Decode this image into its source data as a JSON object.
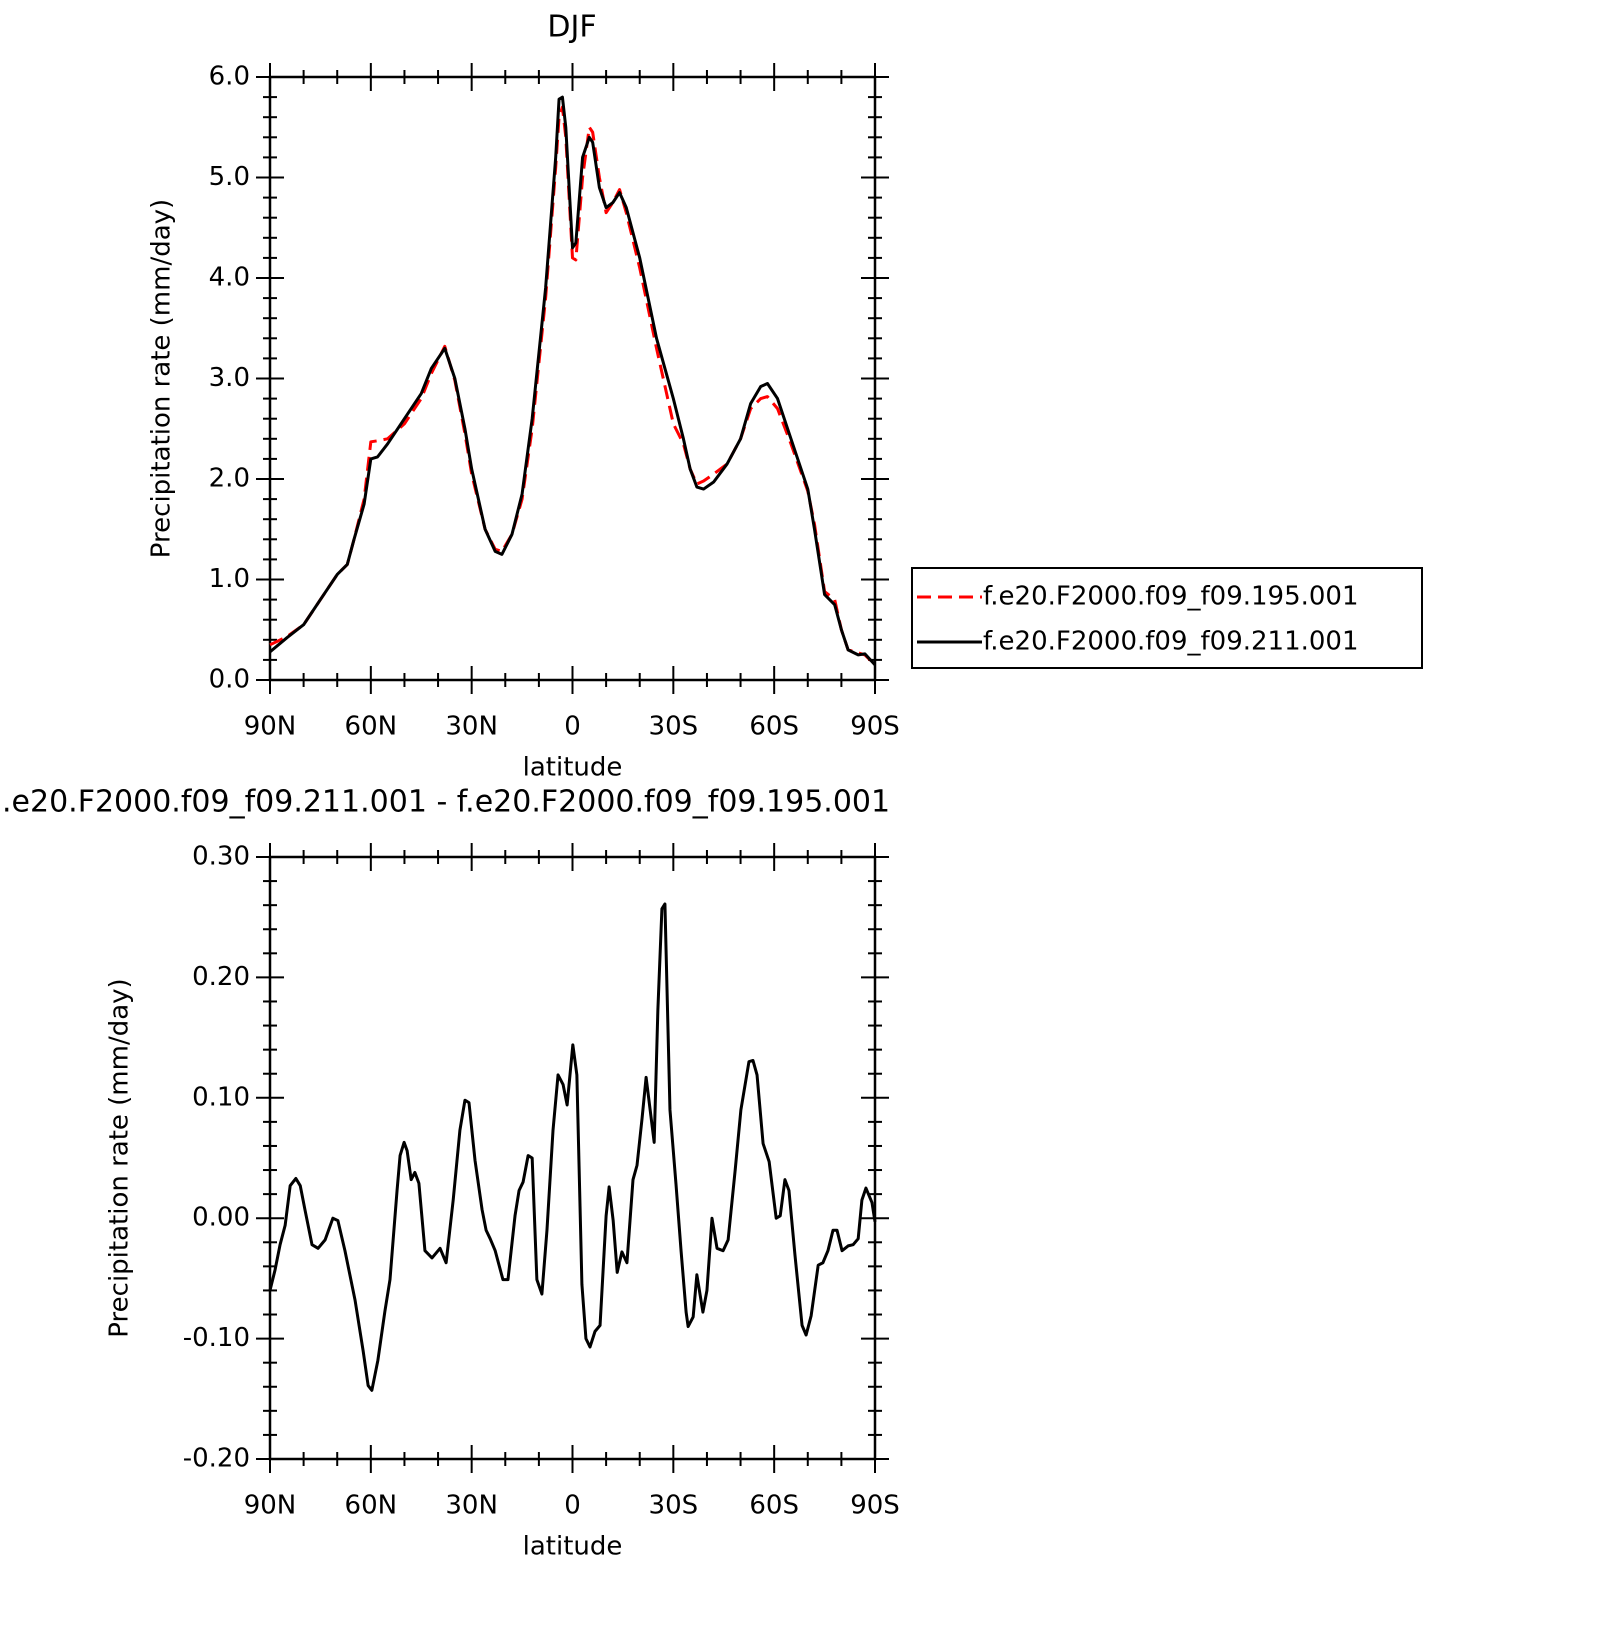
{
  "chart_data": [
    {
      "type": "line",
      "title": "DJF",
      "xlabel": "latitude",
      "ylabel": "Precipitation rate (mm/day)",
      "x": [
        90,
        85,
        80,
        75,
        70,
        67,
        65,
        62,
        60,
        58,
        55,
        50,
        45,
        42,
        38,
        35,
        32,
        30,
        26,
        23,
        21,
        18,
        15,
        12,
        8,
        5,
        4,
        3,
        2,
        0,
        -1,
        -3,
        -5,
        -6,
        -8,
        -10,
        -12,
        -14,
        -16,
        -20,
        -25,
        -30,
        -33,
        -35,
        -37,
        -39,
        -42,
        -46,
        -50,
        -53,
        -56,
        -58,
        -61,
        -65,
        -70,
        -72,
        -75,
        -78,
        -80,
        -82,
        -85,
        -87,
        -90
      ],
      "series": [
        {
          "name": "f.e20.F2000.f09_f09.195.001",
          "color": "#ff0000",
          "dashed": true,
          "values": [
            0.35,
            0.43,
            0.55,
            0.8,
            1.05,
            1.15,
            1.4,
            1.8,
            2.37,
            2.38,
            2.4,
            2.55,
            2.8,
            3.05,
            3.32,
            2.98,
            2.45,
            2.05,
            1.5,
            1.3,
            1.28,
            1.45,
            1.8,
            2.5,
            3.8,
            5.1,
            5.6,
            5.7,
            5.4,
            4.2,
            4.18,
            5.0,
            5.5,
            5.45,
            5.0,
            4.65,
            4.75,
            4.88,
            4.65,
            4.1,
            3.3,
            2.55,
            2.35,
            2.1,
            1.95,
            1.98,
            2.05,
            2.15,
            2.4,
            2.7,
            2.8,
            2.82,
            2.7,
            2.35,
            1.88,
            1.55,
            0.88,
            0.8,
            0.5,
            0.3,
            0.27,
            0.25,
            0.15
          ]
        },
        {
          "name": "f.e20.F2000.f09_f09.211.001",
          "color": "#000000",
          "dashed": false,
          "values": [
            0.28,
            0.42,
            0.55,
            0.8,
            1.05,
            1.15,
            1.4,
            1.75,
            2.2,
            2.22,
            2.35,
            2.6,
            2.85,
            3.1,
            3.3,
            3.0,
            2.5,
            2.1,
            1.5,
            1.28,
            1.25,
            1.45,
            1.85,
            2.6,
            3.9,
            5.2,
            5.78,
            5.8,
            5.5,
            4.3,
            4.35,
            5.2,
            5.4,
            5.35,
            4.9,
            4.7,
            4.75,
            4.85,
            4.7,
            4.2,
            3.4,
            2.8,
            2.4,
            2.1,
            1.92,
            1.9,
            1.97,
            2.15,
            2.4,
            2.75,
            2.92,
            2.95,
            2.8,
            2.4,
            1.9,
            1.5,
            0.85,
            0.75,
            0.5,
            0.3,
            0.25,
            0.26,
            0.15
          ]
        }
      ],
      "xlim": [
        90,
        -90
      ],
      "xticks": [
        {
          "value": 90,
          "label": "90N"
        },
        {
          "value": 60,
          "label": "60N"
        },
        {
          "value": 30,
          "label": "30N"
        },
        0,
        {
          "value": -30,
          "label": "30S"
        },
        {
          "value": -60,
          "label": "60S"
        },
        {
          "value": -90,
          "label": "90S"
        }
      ],
      "ylim": [
        0,
        6
      ],
      "yticks": [
        {
          "value": 0,
          "label": "0.0"
        },
        {
          "value": 1,
          "label": "1.0"
        },
        {
          "value": 2,
          "label": "2.0"
        },
        {
          "value": 3,
          "label": "3.0"
        },
        {
          "value": 4,
          "label": "4.0"
        },
        {
          "value": 5,
          "label": "5.0"
        },
        {
          "value": 6,
          "label": "6.0"
        }
      ],
      "legend": "right"
    },
    {
      "type": "line",
      "title": ".e20.F2000.f09_f09.211.001 - f.e20.F2000.f09_f09.195.001",
      "xlabel": "latitude",
      "ylabel": "Precipitation rate (mm/day)",
      "x": [
        90,
        88.5,
        87,
        85.5,
        84,
        82.3,
        81,
        79.6,
        77.5,
        75.7,
        73.6,
        71.3,
        69.8,
        67.7,
        64.7,
        62.3,
        60.8,
        59.7,
        57.9,
        55.8,
        54.3,
        52.2,
        51.3,
        50.1,
        49.2,
        48,
        46.9,
        45.7,
        43.9,
        41.8,
        39.4,
        37.6,
        35.5,
        33.5,
        32,
        30.8,
        29,
        26.9,
        25.7,
        24.5,
        23,
        20.7,
        19.2,
        17.1,
        15.9,
        14.7,
        13.2,
        12,
        10.6,
        9.1,
        7.6,
        5.8,
        4.3,
        2.8,
        1.6,
        -0.1,
        -1.3,
        -2.8,
        -4,
        -5.2,
        -6.7,
        -8.2,
        -10,
        -10.9,
        -12.1,
        -13.3,
        -14.7,
        -16.2,
        -18,
        -19.2,
        -20.7,
        -21.9,
        -23.1,
        -24.3,
        -25.4,
        -26.6,
        -27.5,
        -29,
        -30.8,
        -32.3,
        -33.8,
        -34.4,
        -35.9,
        -37,
        -38.8,
        -40,
        -41.5,
        -43,
        -44.8,
        -46.3,
        -48.4,
        -50.1,
        -52.5,
        -53.7,
        -54.9,
        -56.7,
        -58.5,
        -60.6,
        -61.8,
        -63.2,
        -64.4,
        -66.2,
        -68.3,
        -69.5,
        -71,
        -73.1,
        -74.5,
        -76,
        -77.5,
        -78.7,
        -80.2,
        -82,
        -83.5,
        -85,
        -86.1,
        -87.3,
        -89.1,
        -90
      ],
      "series": [
        {
          "color": "#000000",
          "dashed": false,
          "values": [
            -0.06,
            -0.043,
            -0.022,
            -0.006,
            0.027,
            0.033,
            0.027,
            0.007,
            -0.022,
            -0.025,
            -0.018,
            0,
            -0.002,
            -0.027,
            -0.068,
            -0.11,
            -0.139,
            -0.143,
            -0.118,
            -0.077,
            -0.051,
            0.023,
            0.052,
            0.063,
            0.056,
            0.032,
            0.038,
            0.029,
            -0.027,
            -0.033,
            -0.025,
            -0.037,
            0.015,
            0.073,
            0.098,
            0.096,
            0.048,
            0.007,
            -0.01,
            -0.017,
            -0.027,
            -0.051,
            -0.051,
            0.002,
            0.023,
            0.03,
            0.052,
            0.05,
            -0.051,
            -0.063,
            -0.01,
            0.073,
            0.119,
            0.111,
            0.094,
            0.144,
            0.119,
            -0.055,
            -0.1,
            -0.107,
            -0.094,
            -0.089,
            0.002,
            0.026,
            -0.002,
            -0.045,
            -0.028,
            -0.037,
            0.032,
            0.044,
            0.083,
            0.117,
            0.09,
            0.063,
            0.173,
            0.257,
            0.261,
            0.09,
            0.028,
            -0.027,
            -0.078,
            -0.09,
            -0.082,
            -0.047,
            -0.078,
            -0.06,
            0,
            -0.025,
            -0.027,
            -0.018,
            0.04,
            0.09,
            0.13,
            0.131,
            0.119,
            0.062,
            0.047,
            0,
            0.002,
            0.032,
            0.023,
            -0.031,
            -0.089,
            -0.097,
            -0.081,
            -0.039,
            -0.037,
            -0.027,
            -0.01,
            -0.01,
            -0.027,
            -0.023,
            -0.022,
            -0.017,
            0.015,
            0.025,
            0.013,
            -0.003
          ]
        }
      ],
      "xlim": [
        90,
        -90
      ],
      "xticks": [
        {
          "value": 90,
          "label": "90N"
        },
        {
          "value": 60,
          "label": "60N"
        },
        {
          "value": 30,
          "label": "30N"
        },
        0,
        {
          "value": -30,
          "label": "30S"
        },
        {
          "value": -60,
          "label": "60S"
        },
        {
          "value": -90,
          "label": "90S"
        }
      ],
      "ylim": [
        -0.2,
        0.3
      ],
      "yticks": [
        {
          "value": -0.2,
          "label": "-0.20"
        },
        {
          "value": -0.1,
          "label": "-0.10"
        },
        {
          "value": 0,
          "label": "0.00"
        },
        {
          "value": 0.1,
          "label": "0.10"
        },
        {
          "value": 0.2,
          "label": "0.20"
        },
        {
          "value": 0.3,
          "label": "0.30"
        }
      ]
    }
  ]
}
